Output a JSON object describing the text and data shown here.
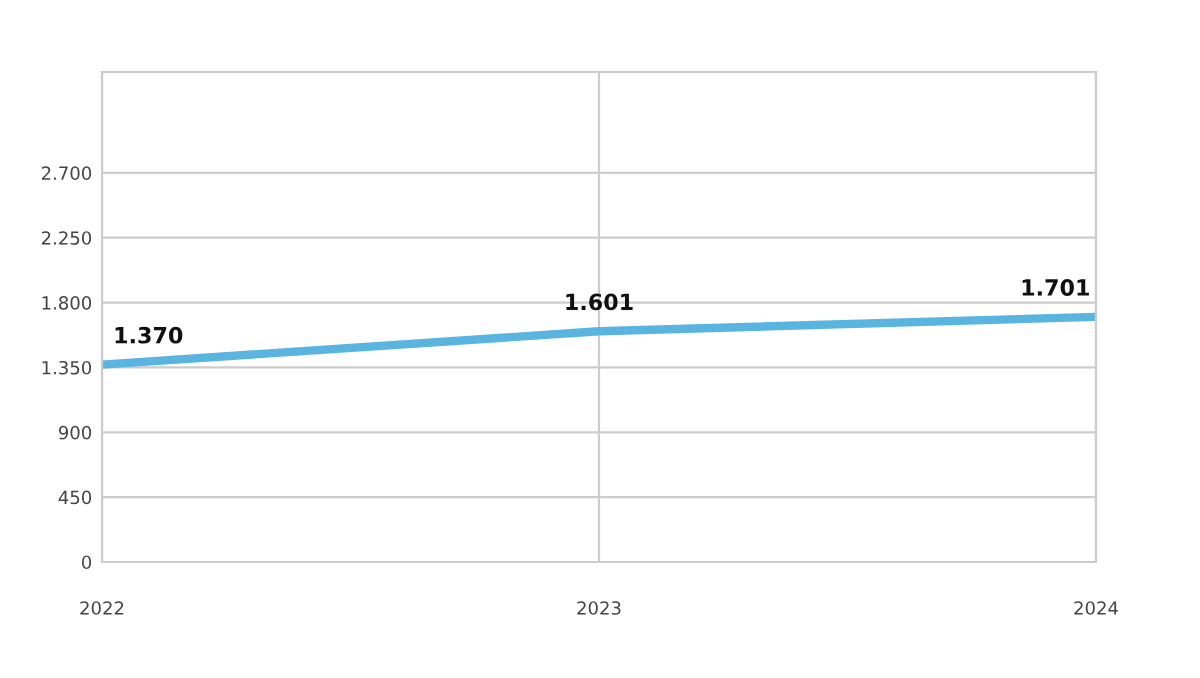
{
  "chart_data": {
    "type": "line",
    "x": [
      2022,
      2023,
      2024
    ],
    "series": [
      {
        "color": "#5ab4e0",
        "values": [
          1370,
          1601,
          1701
        ],
        "value_labels": [
          "1.370",
          "1.601",
          "1.701"
        ]
      }
    ],
    "xlim": [
      2022,
      2024
    ],
    "xticks": [
      2022,
      2023,
      2024
    ],
    "ylim": [
      0,
      3400
    ],
    "yticks": [
      {
        "value": 0,
        "label": "0"
      },
      {
        "value": 450,
        "label": "450"
      },
      {
        "value": 900,
        "label": "900"
      },
      {
        "value": 1350,
        "label": "1.350"
      },
      {
        "value": 1800,
        "label": "1.800"
      },
      {
        "value": 2250,
        "label": "2.250"
      },
      {
        "value": 2700,
        "label": "2.700"
      }
    ],
    "grid": true,
    "marker": "none",
    "line_style": "solid"
  }
}
